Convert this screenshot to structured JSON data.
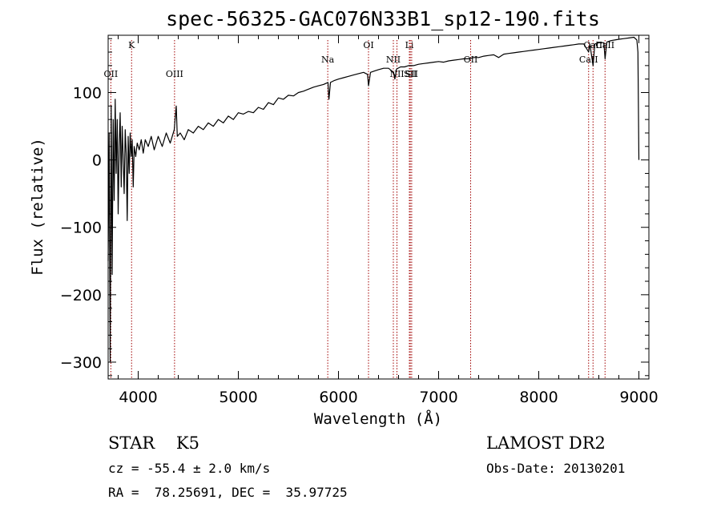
{
  "chart_data": {
    "type": "line",
    "title": "spec-56325-GAC076N33B1_sp12-190.fits",
    "xlabel": "Wavelength (Å)",
    "ylabel": "Flux (relative)",
    "xlim": [
      3700,
      9100
    ],
    "ylim": [
      -325,
      185
    ],
    "xticks": [
      4000,
      5000,
      6000,
      7000,
      8000,
      9000
    ],
    "yticks": [
      -300,
      -200,
      -100,
      0,
      100
    ],
    "grid": false,
    "series": [
      {
        "color": "#000000",
        "points": [
          [
            3700,
            -150
          ],
          [
            3710,
            40
          ],
          [
            3720,
            -300
          ],
          [
            3730,
            80
          ],
          [
            3740,
            -170
          ],
          [
            3750,
            60
          ],
          [
            3760,
            -60
          ],
          [
            3770,
            90
          ],
          [
            3780,
            -20
          ],
          [
            3790,
            60
          ],
          [
            3800,
            -80
          ],
          [
            3810,
            20
          ],
          [
            3820,
            70
          ],
          [
            3830,
            -40
          ],
          [
            3840,
            50
          ],
          [
            3850,
            0
          ],
          [
            3860,
            -50
          ],
          [
            3870,
            45
          ],
          [
            3880,
            10
          ],
          [
            3890,
            -90
          ],
          [
            3900,
            35
          ],
          [
            3910,
            -20
          ],
          [
            3920,
            40
          ],
          [
            3930,
            5
          ],
          [
            3940,
            30
          ],
          [
            3950,
            -40
          ],
          [
            3960,
            20
          ],
          [
            3975,
            5
          ],
          [
            3990,
            25
          ],
          [
            4010,
            15
          ],
          [
            4030,
            30
          ],
          [
            4050,
            10
          ],
          [
            4070,
            30
          ],
          [
            4100,
            20
          ],
          [
            4130,
            35
          ],
          [
            4160,
            15
          ],
          [
            4200,
            35
          ],
          [
            4240,
            20
          ],
          [
            4280,
            40
          ],
          [
            4320,
            25
          ],
          [
            4360,
            45
          ],
          [
            4380,
            80
          ],
          [
            4390,
            35
          ],
          [
            4420,
            40
          ],
          [
            4460,
            30
          ],
          [
            4500,
            45
          ],
          [
            4550,
            40
          ],
          [
            4600,
            50
          ],
          [
            4650,
            45
          ],
          [
            4700,
            55
          ],
          [
            4750,
            50
          ],
          [
            4800,
            60
          ],
          [
            4850,
            55
          ],
          [
            4900,
            65
          ],
          [
            4950,
            60
          ],
          [
            5000,
            70
          ],
          [
            5050,
            68
          ],
          [
            5100,
            72
          ],
          [
            5150,
            70
          ],
          [
            5200,
            78
          ],
          [
            5250,
            75
          ],
          [
            5300,
            85
          ],
          [
            5350,
            82
          ],
          [
            5400,
            92
          ],
          [
            5450,
            90
          ],
          [
            5500,
            96
          ],
          [
            5550,
            95
          ],
          [
            5600,
            100
          ],
          [
            5650,
            102
          ],
          [
            5700,
            105
          ],
          [
            5750,
            108
          ],
          [
            5800,
            110
          ],
          [
            5850,
            112
          ],
          [
            5895,
            115
          ],
          [
            5905,
            90
          ],
          [
            5920,
            115
          ],
          [
            5960,
            118
          ],
          [
            6000,
            120
          ],
          [
            6050,
            122
          ],
          [
            6100,
            124
          ],
          [
            6150,
            126
          ],
          [
            6200,
            128
          ],
          [
            6250,
            130
          ],
          [
            6290,
            127
          ],
          [
            6300,
            110
          ],
          [
            6320,
            130
          ],
          [
            6360,
            132
          ],
          [
            6400,
            134
          ],
          [
            6450,
            136
          ],
          [
            6500,
            136
          ],
          [
            6550,
            130
          ],
          [
            6563,
            120
          ],
          [
            6580,
            135
          ],
          [
            6620,
            138
          ],
          [
            6660,
            138
          ],
          [
            6700,
            140
          ],
          [
            6750,
            140
          ],
          [
            6800,
            142
          ],
          [
            6850,
            143
          ],
          [
            6900,
            144
          ],
          [
            6950,
            145
          ],
          [
            7000,
            146
          ],
          [
            7050,
            145
          ],
          [
            7100,
            147
          ],
          [
            7150,
            148
          ],
          [
            7200,
            149
          ],
          [
            7250,
            150
          ],
          [
            7300,
            150
          ],
          [
            7350,
            152
          ],
          [
            7400,
            152
          ],
          [
            7450,
            154
          ],
          [
            7500,
            155
          ],
          [
            7550,
            156
          ],
          [
            7600,
            152
          ],
          [
            7650,
            157
          ],
          [
            7700,
            158
          ],
          [
            7750,
            159
          ],
          [
            7800,
            160
          ],
          [
            7850,
            161
          ],
          [
            7900,
            162
          ],
          [
            7950,
            163
          ],
          [
            8000,
            164
          ],
          [
            8050,
            165
          ],
          [
            8100,
            166
          ],
          [
            8150,
            167
          ],
          [
            8200,
            168
          ],
          [
            8250,
            169
          ],
          [
            8300,
            170
          ],
          [
            8350,
            171
          ],
          [
            8400,
            172
          ],
          [
            8450,
            172
          ],
          [
            8498,
            160
          ],
          [
            8510,
            172
          ],
          [
            8542,
            140
          ],
          [
            8560,
            172
          ],
          [
            8600,
            174
          ],
          [
            8650,
            174
          ],
          [
            8662,
            150
          ],
          [
            8680,
            175
          ],
          [
            8720,
            177
          ],
          [
            8760,
            178
          ],
          [
            8800,
            179
          ],
          [
            8850,
            180
          ],
          [
            8900,
            181
          ],
          [
            8950,
            182
          ],
          [
            8980,
            178
          ],
          [
            8990,
            160
          ],
          [
            9000,
            0
          ]
        ]
      }
    ],
    "line_markers": [
      {
        "label": "OII",
        "wavelength": 3727,
        "label_row": 2
      },
      {
        "label": "K",
        "wavelength": 3934,
        "label_row": 0
      },
      {
        "label": "OIII",
        "wavelength": 4363,
        "label_row": 2
      },
      {
        "label": "Na",
        "wavelength": 5893,
        "label_row": 1
      },
      {
        "label": "OI",
        "wavelength": 6300,
        "label_row": 0
      },
      {
        "label": "NII",
        "wavelength": 6548,
        "label_row": 1
      },
      {
        "label": "NII",
        "wavelength": 6584,
        "label_row": 2
      },
      {
        "label": "Li",
        "wavelength": 6708,
        "label_row": 0
      },
      {
        "label": "SII",
        "wavelength": 6717,
        "label_row": 2
      },
      {
        "label": "SII",
        "wavelength": 6731,
        "label_row": 2
      },
      {
        "label": "OII",
        "wavelength": 7320,
        "label_row": 1
      },
      {
        "label": "CaII",
        "wavelength": 8498,
        "label_row": 1
      },
      {
        "label": "CaII",
        "wavelength": 8542,
        "label_row": 0
      },
      {
        "label": "CaII",
        "wavelength": 8662,
        "label_row": 0
      }
    ]
  },
  "info": {
    "class_text": "STAR    K5",
    "survey_text": "LAMOST DR2",
    "cz_text": "cz = -55.4 ± 2.0 km/s",
    "obs_date_text": "Obs-Date: 20130201",
    "radec_text": "RA =  78.25691, DEC =  35.97725"
  }
}
